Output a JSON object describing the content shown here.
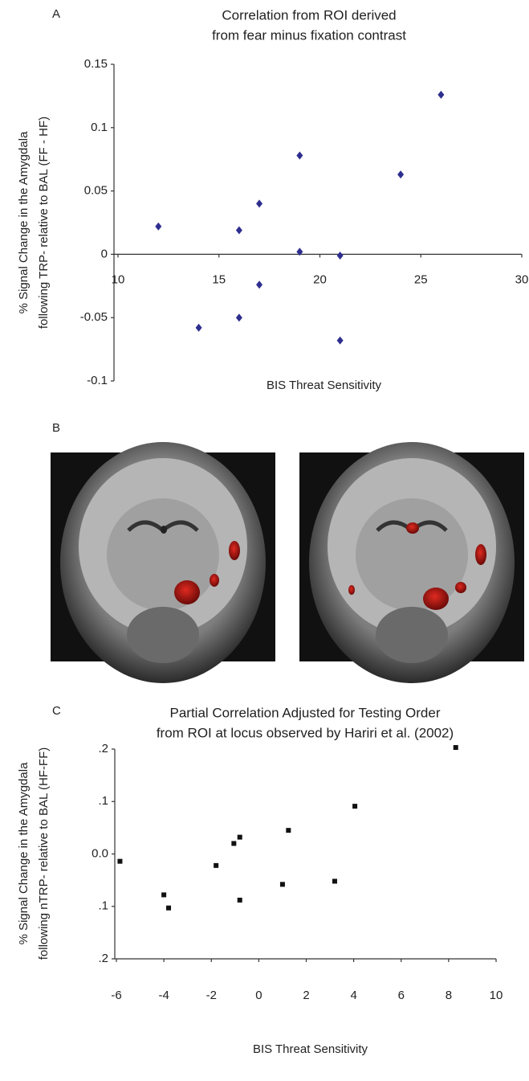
{
  "panel_labels": [
    "A",
    "B",
    "C"
  ],
  "chart_data": [
    {
      "type": "scatter",
      "title": [
        "Correlation from ROI derived",
        "from fear minus fixation contrast"
      ],
      "xlabel": "BIS Threat Sensitivity",
      "ylabel": [
        "% Signal Change in the Amygdala",
        "following TRP- relative to BAL (FF - HF)"
      ],
      "x": [
        12,
        14,
        16,
        16,
        17,
        17,
        19,
        19,
        21,
        21,
        24,
        26
      ],
      "values": [
        0.022,
        -0.058,
        0.019,
        -0.05,
        0.04,
        -0.024,
        0.078,
        0.002,
        -0.001,
        -0.068,
        0.063,
        0.126
      ],
      "color": "#2e2e8f",
      "marker": "diamond",
      "xlim": [
        10,
        30
      ],
      "xticks": [
        10,
        15,
        20,
        25,
        30
      ],
      "ylim": [
        -0.1,
        0.15
      ],
      "yticks": [
        -0.1,
        -0.05,
        0,
        0.05,
        0.1,
        0.15
      ],
      "xaxis_crosses": 0
    },
    {
      "type": "scatter",
      "title": [
        "Partial  Correlation Adjusted for Testing Order",
        "from ROI at locus observed by Hariri et al. (2002)"
      ],
      "xlabel": "BIS Threat Sensitivity",
      "ylabel": [
        "% Signal Change in the Amygdala",
        "following nTRP- relative to BAL (HF-FF)"
      ],
      "x": [
        -5.85,
        -4.0,
        -3.8,
        -1.8,
        -1.05,
        -0.8,
        -0.8,
        1.0,
        1.25,
        3.2,
        4.05,
        8.3
      ],
      "values": [
        -0.014,
        -0.078,
        -0.103,
        -0.022,
        0.02,
        0.032,
        -0.088,
        -0.058,
        0.045,
        -0.052,
        0.091,
        0.203
      ],
      "color": "#111111",
      "marker": "square",
      "xlim": [
        -6,
        10
      ],
      "xticks": [
        -6,
        -4,
        -2,
        0,
        2,
        4,
        6,
        8,
        10
      ],
      "ylim": [
        -0.2,
        0.2
      ],
      "yticks": [
        {
          "value": -0.2,
          "label": ".2"
        },
        {
          "value": -0.1,
          "label": ".1"
        },
        {
          "value": 0,
          "label": "0.0"
        },
        {
          "value": 0.1,
          "label": ".1"
        },
        {
          "value": 0.2,
          "label": ".2"
        }
      ]
    }
  ]
}
